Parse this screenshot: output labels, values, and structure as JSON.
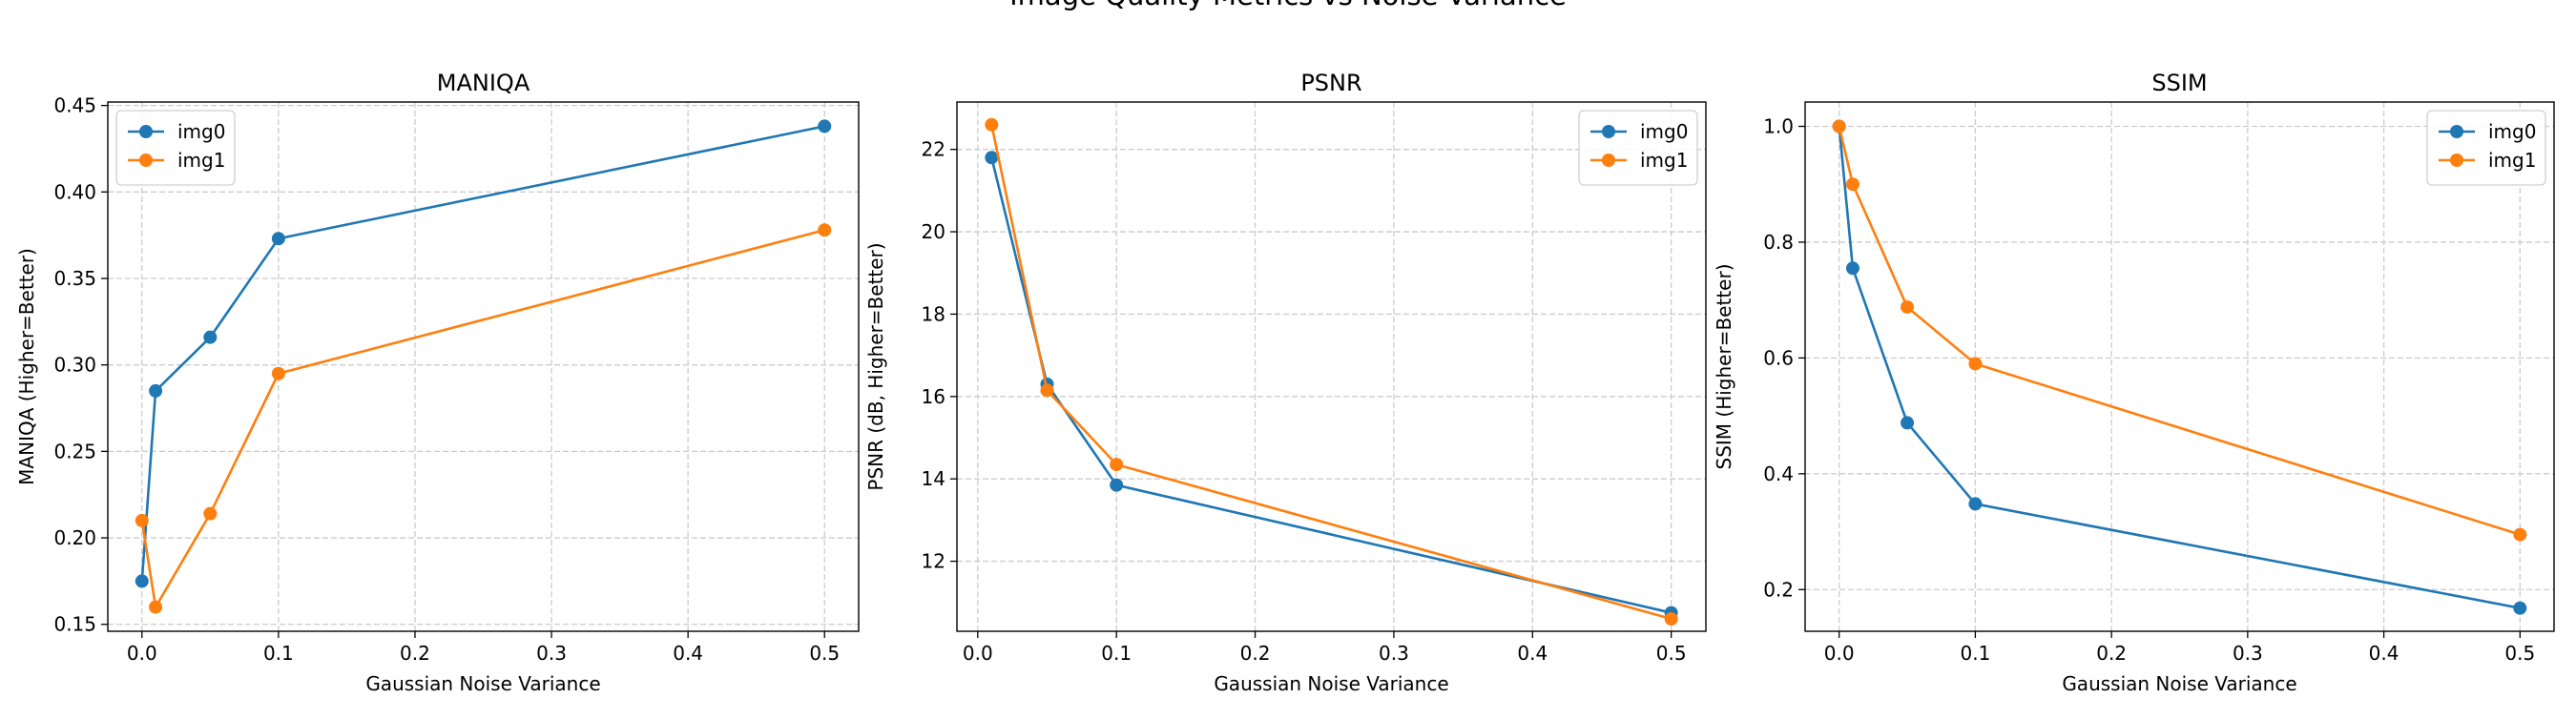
{
  "figure": {
    "suptitle": "Image Quality Metrics vs Noise Variance"
  },
  "colors": {
    "img0": "#1f77b4",
    "img1": "#ff7f0e",
    "grid": "#cccccc",
    "axis": "#000000"
  },
  "chart_data": [
    {
      "type": "line",
      "title": "MANIQA",
      "xlabel": "Gaussian Noise Variance",
      "ylabel": "MANIQA (Higher=Better)",
      "xlim": [
        -0.025,
        0.525
      ],
      "ylim": [
        0.146,
        0.452
      ],
      "xticks": [
        0.0,
        0.1,
        0.2,
        0.3,
        0.4,
        0.5
      ],
      "xtick_labels": [
        "0.0",
        "0.1",
        "0.2",
        "0.3",
        "0.4",
        "0.5"
      ],
      "yticks": [
        0.15,
        0.2,
        0.25,
        0.3,
        0.35,
        0.4,
        0.45
      ],
      "ytick_labels": [
        "0.15",
        "0.20",
        "0.25",
        "0.30",
        "0.35",
        "0.40",
        "0.45"
      ],
      "grid": true,
      "legend": "upper left",
      "series": [
        {
          "name": "img0",
          "x": [
            0.0,
            0.01,
            0.05,
            0.1,
            0.5
          ],
          "y": [
            0.175,
            0.285,
            0.316,
            0.373,
            0.438
          ]
        },
        {
          "name": "img1",
          "x": [
            0.0,
            0.01,
            0.05,
            0.1,
            0.5
          ],
          "y": [
            0.21,
            0.16,
            0.214,
            0.295,
            0.378
          ]
        }
      ]
    },
    {
      "type": "line",
      "title": "PSNR",
      "xlabel": "Gaussian Noise Variance",
      "ylabel": "PSNR (dB, Higher=Better)",
      "xlim": [
        -0.015,
        0.525
      ],
      "ylim": [
        10.3,
        23.15
      ],
      "xticks": [
        0.0,
        0.1,
        0.2,
        0.3,
        0.4,
        0.5
      ],
      "xtick_labels": [
        "0.0",
        "0.1",
        "0.2",
        "0.3",
        "0.4",
        "0.5"
      ],
      "yticks": [
        12,
        14,
        16,
        18,
        20,
        22
      ],
      "ytick_labels": [
        "12",
        "14",
        "16",
        "18",
        "20",
        "22"
      ],
      "grid": true,
      "legend": "upper right",
      "series": [
        {
          "name": "img0",
          "x": [
            0.01,
            0.05,
            0.1,
            0.5
          ],
          "y": [
            21.8,
            16.3,
            13.85,
            10.75
          ]
        },
        {
          "name": "img1",
          "x": [
            0.01,
            0.05,
            0.1,
            0.5
          ],
          "y": [
            22.6,
            16.15,
            14.35,
            10.6
          ]
        }
      ]
    },
    {
      "type": "line",
      "title": "SSIM",
      "xlabel": "Gaussian Noise Variance",
      "ylabel": "SSIM (Higher=Better)",
      "xlim": [
        -0.025,
        0.525
      ],
      "ylim": [
        0.128,
        1.042
      ],
      "xticks": [
        0.0,
        0.1,
        0.2,
        0.3,
        0.4,
        0.5
      ],
      "xtick_labels": [
        "0.0",
        "0.1",
        "0.2",
        "0.3",
        "0.4",
        "0.5"
      ],
      "yticks": [
        0.2,
        0.4,
        0.6,
        0.8,
        1.0
      ],
      "ytick_labels": [
        "0.2",
        "0.4",
        "0.6",
        "0.8",
        "1.0"
      ],
      "grid": true,
      "legend": "upper right",
      "series": [
        {
          "name": "img0",
          "x": [
            0.0,
            0.01,
            0.05,
            0.1,
            0.5
          ],
          "y": [
            1.0,
            0.755,
            0.488,
            0.348,
            0.168
          ]
        },
        {
          "name": "img1",
          "x": [
            0.0,
            0.01,
            0.05,
            0.1,
            0.5
          ],
          "y": [
            1.0,
            0.9,
            0.688,
            0.59,
            0.295
          ]
        }
      ]
    }
  ]
}
